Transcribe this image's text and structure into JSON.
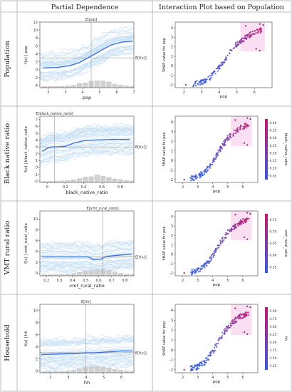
{
  "headers": {
    "col1": "Partial Dependence",
    "col2": "Interaction Plot based on Population"
  },
  "rows": [
    {
      "row_label": "Population",
      "pdp": {
        "title": "E[pop]",
        "ylabel": "f(x) | pop",
        "xlabel": "pop",
        "ef_label": "E[f(x)]",
        "xlim": [
          1.5,
          7
        ],
        "ylim": [
          -4.5,
          12
        ],
        "xticks": [
          2,
          3,
          4,
          5,
          6,
          7
        ],
        "yticks": [
          -4,
          -2,
          0,
          2,
          4,
          6,
          8,
          10,
          12
        ],
        "expected_x": 4.5,
        "expected_fx": 3.0,
        "curve": [
          [
            1.7,
            0.5
          ],
          [
            2.5,
            0.6
          ],
          [
            3.2,
            1.0
          ],
          [
            3.8,
            1.8
          ],
          [
            4.3,
            3.0
          ],
          [
            4.8,
            4.2
          ],
          [
            5.2,
            5.2
          ],
          [
            5.7,
            6.3
          ],
          [
            6.3,
            7.0
          ],
          [
            6.9,
            7.2
          ]
        ]
      },
      "scatter": {
        "xlabel": "pop",
        "ylabel": "SHAP value for pop",
        "xticks": [
          2,
          3,
          4,
          5,
          6
        ],
        "yticks": [
          -2,
          -1,
          0,
          1,
          2,
          3,
          4
        ],
        "has_colorbar": false,
        "colorbar_label": "",
        "colorbar_ticks": []
      }
    },
    {
      "row_label": "Black native ratio",
      "pdp": {
        "title": "E[black_native_ratio]",
        "ylabel": "f(x) | black_native_ratio",
        "xlabel": "black_native_ratio",
        "ef_label": "E[f(x)]",
        "xlim": [
          -0.08,
          0.95
        ],
        "ylim": [
          -2.2,
          7.5
        ],
        "xticks": [
          0.0,
          0.2,
          0.4,
          0.6,
          0.8
        ],
        "yticks": [
          -2,
          -1,
          0,
          1,
          2,
          3,
          4,
          5,
          6,
          7
        ],
        "expected_x": 0.08,
        "expected_fx": 3.0,
        "curve": [
          [
            -0.05,
            2.4
          ],
          [
            0.0,
            2.8
          ],
          [
            0.05,
            3.0
          ],
          [
            0.1,
            3.0
          ],
          [
            0.2,
            3.1
          ],
          [
            0.3,
            3.6
          ],
          [
            0.4,
            3.9
          ],
          [
            0.5,
            4.0
          ],
          [
            0.7,
            4.1
          ],
          [
            0.9,
            4.1
          ]
        ]
      },
      "scatter": {
        "xlabel": "pop",
        "ylabel": "SHAP value for pop",
        "xticks": [
          2,
          3,
          4,
          5,
          6
        ],
        "yticks": [
          -2,
          -1,
          0,
          1,
          2,
          3,
          4
        ],
        "has_colorbar": true,
        "colorbar_label": "black_native_ratio",
        "colorbar_ticks": [
          "0.40",
          "0.35",
          "0.30",
          "0.25",
          "0.20",
          "0.15",
          "0.10",
          "0.05"
        ]
      }
    },
    {
      "row_label": "VMT rural ratio",
      "pdp": {
        "title": "E[vmt_rural_ratio]",
        "ylabel": "f(x) | vmt_rural_ratio",
        "xlabel": "vmt_rural_ratio",
        "ef_label": "E[f(x)]",
        "xlim": [
          0.15,
          0.87
        ],
        "ylim": [
          -0.5,
          11.5
        ],
        "xticks": [
          0.2,
          0.3,
          0.4,
          0.5,
          0.6,
          0.7,
          0.8
        ],
        "yticks": [
          0,
          2,
          4,
          6,
          8,
          10
        ],
        "expected_x": 0.63,
        "expected_fx": 3.0,
        "curve": [
          [
            0.17,
            3.0
          ],
          [
            0.3,
            3.0
          ],
          [
            0.45,
            3.0
          ],
          [
            0.52,
            3.0
          ],
          [
            0.56,
            2.5
          ],
          [
            0.62,
            2.6
          ],
          [
            0.66,
            3.1
          ],
          [
            0.75,
            3.3
          ],
          [
            0.85,
            3.5
          ]
        ]
      },
      "scatter": {
        "xlabel": "pop",
        "ylabel": "SHAP value for pop",
        "xticks": [
          2,
          3,
          4,
          5,
          6
        ],
        "yticks": [
          -2,
          -1,
          0,
          1,
          2,
          3,
          4
        ],
        "has_colorbar": true,
        "colorbar_label": "vmt_rural_ratio",
        "colorbar_ticks": [
          "0.75",
          "0.70",
          "0.65",
          "0.60",
          "0.55"
        ]
      }
    },
    {
      "row_label": "Household",
      "pdp": {
        "title": "E[hh]",
        "ylabel": "f(x) | hh",
        "xlabel": "hh",
        "ef_label": "E[f(x)]",
        "xlim": [
          1.4,
          6.7
        ],
        "ylim": [
          -0.3,
          11
        ],
        "xticks": [
          2,
          3,
          4,
          5,
          6
        ],
        "yticks": [
          0,
          2,
          4,
          6,
          8,
          10
        ],
        "expected_x": 4.0,
        "expected_fx": 3.0,
        "curve": [
          [
            1.5,
            2.7
          ],
          [
            2.5,
            2.8
          ],
          [
            3.5,
            2.9
          ],
          [
            4.0,
            3.0
          ],
          [
            4.5,
            3.0
          ],
          [
            5.0,
            3.1
          ],
          [
            5.5,
            3.2
          ],
          [
            6.0,
            3.3
          ],
          [
            6.6,
            3.3
          ]
        ]
      },
      "scatter": {
        "xlabel": "pop",
        "ylabel": "SHAP value for pop",
        "xticks": [
          2,
          3,
          4,
          5,
          6
        ],
        "yticks": [
          -2,
          -1,
          0,
          1,
          2,
          3,
          4
        ],
        "has_colorbar": true,
        "colorbar_label": "hh",
        "colorbar_ticks": [
          "5.00",
          "4.75",
          "4.50",
          "4.25",
          "4.00",
          "3.75",
          "3.50",
          "3.25"
        ]
      }
    }
  ],
  "chart_data": [
    {
      "type": "line",
      "title": "Partial Dependence",
      "series": [
        {
          "name": "Population",
          "x": [
            1.7,
            2.5,
            3.2,
            3.8,
            4.3,
            4.8,
            5.2,
            5.7,
            6.3,
            6.9
          ],
          "y": [
            0.5,
            0.6,
            1.0,
            1.8,
            3.0,
            4.2,
            5.2,
            6.3,
            7.0,
            7.2
          ]
        },
        {
          "name": "Black native ratio",
          "x": [
            -0.05,
            0.0,
            0.05,
            0.1,
            0.2,
            0.3,
            0.4,
            0.5,
            0.7,
            0.9
          ],
          "y": [
            2.4,
            2.8,
            3.0,
            3.0,
            3.1,
            3.6,
            3.9,
            4.0,
            4.1,
            4.1
          ]
        },
        {
          "name": "VMT rural ratio",
          "x": [
            0.17,
            0.3,
            0.45,
            0.52,
            0.56,
            0.62,
            0.66,
            0.75,
            0.85
          ],
          "y": [
            3.0,
            3.0,
            3.0,
            3.0,
            2.5,
            2.6,
            3.1,
            3.3,
            3.5
          ]
        },
        {
          "name": "Household",
          "x": [
            1.5,
            2.5,
            3.5,
            4.0,
            4.5,
            5.0,
            5.5,
            6.0,
            6.6
          ],
          "y": [
            2.7,
            2.8,
            2.9,
            3.0,
            3.0,
            3.1,
            3.2,
            3.3,
            3.3
          ]
        }
      ]
    },
    {
      "type": "scatter",
      "title": "Interaction Plot based on Population",
      "xlabel": "pop",
      "ylabel": "SHAP value for pop",
      "xlim": [
        1.5,
        7
      ],
      "ylim": [
        -2.3,
        4.6
      ],
      "trend": {
        "x": [
          2.0,
          2.5,
          3.0,
          3.5,
          4.0,
          4.5,
          5.0,
          5.5,
          6.0,
          6.4
        ],
        "y": [
          -2.0,
          -1.9,
          -1.7,
          -1.2,
          -0.2,
          1.2,
          2.3,
          3.0,
          3.5,
          3.8
        ]
      },
      "outliers": [
        [
          6.3,
          4.4
        ],
        [
          6.5,
          4.3
        ],
        [
          6.1,
          1.8
        ],
        [
          6.3,
          1.6
        ],
        [
          5.5,
          4.2
        ],
        [
          2.1,
          -2.0
        ]
      ]
    }
  ],
  "colors": {
    "grid_line": "#aaaaaa",
    "pdp_line": "#3a6fd8",
    "pdp_fill": "#9ec9ee",
    "hist": "#cccccc",
    "scatter_low": "#3a5bd8",
    "scatter_high": "#c2186b",
    "pink_haze": "#f4b6e0"
  }
}
